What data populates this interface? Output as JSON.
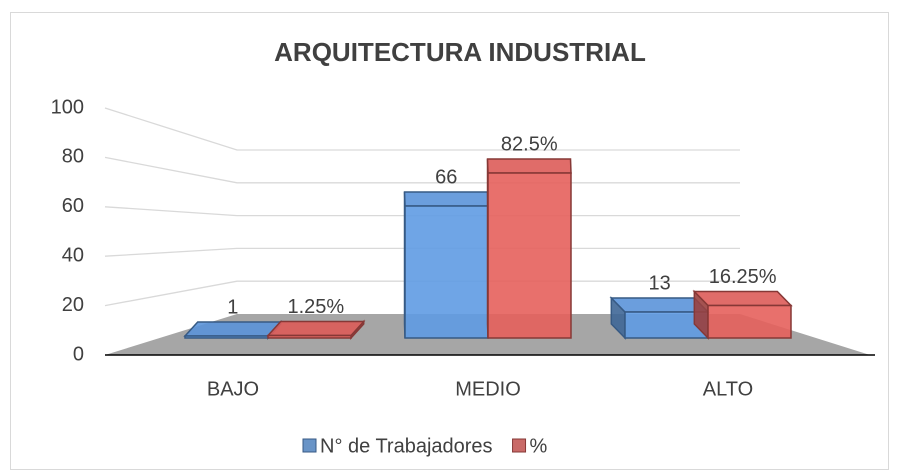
{
  "chart_data": {
    "type": "bar3d",
    "title": "ARQUITECTURA INDUSTRIAL",
    "categories": [
      "BAJO",
      "MEDIO",
      "ALTO"
    ],
    "series": [
      {
        "name": "N° de Trabajadores",
        "color": "#4f81bd",
        "values": [
          1,
          66,
          13
        ]
      },
      {
        "name": "%",
        "color": "#c0504d",
        "values": [
          1.25,
          82.5,
          16.25
        ],
        "value_labels": [
          "1.25%",
          "82.5%",
          "16.25%"
        ]
      }
    ],
    "ylim": [
      0,
      100
    ],
    "yticks": [
      0,
      20,
      40,
      60,
      80,
      100
    ],
    "grid": true,
    "legend": "bottom"
  }
}
